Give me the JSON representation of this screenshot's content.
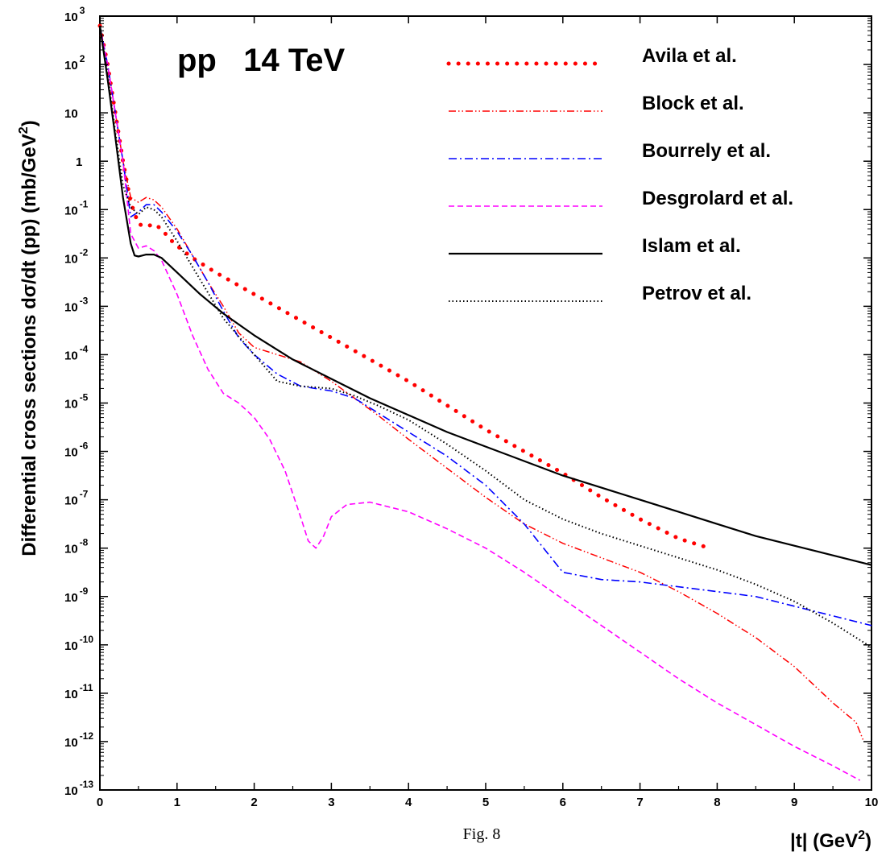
{
  "chart_data": {
    "type": "line",
    "title": "pp   14 TeV",
    "xlabel": "|t| (GeV",
    "xlabel_sup": "2",
    "xlabel_end": ")",
    "ylabel": "Differential cross sections d",
    "ylabel_sigma": "σ",
    "ylabel_mid": "/dt (pp) (mb/GeV",
    "ylabel_sup": "2",
    "ylabel_end": ")",
    "caption": "Fig. 8",
    "xlim": [
      0,
      10
    ],
    "ylim_exp": [
      -13,
      3
    ],
    "yscale": "log",
    "grid": false,
    "legend_position": "top-right",
    "x_ticks": [
      "0",
      "1",
      "2",
      "3",
      "4",
      "5",
      "6",
      "7",
      "8",
      "9",
      "10"
    ],
    "y_ticks": [
      {
        "base": "10",
        "exp": "-13",
        "value": -13
      },
      {
        "base": "10",
        "exp": "-12",
        "value": -12
      },
      {
        "base": "10",
        "exp": "-11",
        "value": -11
      },
      {
        "base": "10",
        "exp": "-10",
        "value": -10
      },
      {
        "base": "10",
        "exp": "-9",
        "value": -9
      },
      {
        "base": "10",
        "exp": "-8",
        "value": -8
      },
      {
        "base": "10",
        "exp": "-7",
        "value": -7
      },
      {
        "base": "10",
        "exp": "-6",
        "value": -6
      },
      {
        "base": "10",
        "exp": "-5",
        "value": -5
      },
      {
        "base": "10",
        "exp": "-4",
        "value": -4
      },
      {
        "base": "10",
        "exp": "-3",
        "value": -3
      },
      {
        "base": "10",
        "exp": "-2",
        "value": -2
      },
      {
        "base": "10",
        "exp": "-1",
        "value": -1
      },
      {
        "base": "1",
        "exp": "",
        "value": 0
      },
      {
        "base": "10",
        "exp": "",
        "value": 1
      },
      {
        "base": "10",
        "exp": "2",
        "value": 2
      },
      {
        "base": "10",
        "exp": "3",
        "value": 3
      }
    ],
    "series": [
      {
        "name": "Avila et al.",
        "color": "#ff0000",
        "style": "dotted-large",
        "x": [
          0,
          0.1,
          0.2,
          0.3,
          0.4,
          0.5,
          0.6,
          0.7,
          0.8,
          0.9,
          1.0,
          1.2,
          1.5,
          2.0,
          2.5,
          3.0,
          3.5,
          4.0,
          4.5,
          5.0,
          5.5,
          6.0,
          6.5,
          7.0,
          7.5,
          7.9
        ],
        "y_log10": [
          2.8,
          2.0,
          1.0,
          0.0,
          -0.85,
          -1.3,
          -1.35,
          -1.3,
          -1.4,
          -1.6,
          -1.75,
          -2.0,
          -2.3,
          -2.75,
          -3.2,
          -3.65,
          -4.1,
          -4.55,
          -5.05,
          -5.55,
          -6.0,
          -6.45,
          -6.95,
          -7.4,
          -7.8,
          -8.0
        ]
      },
      {
        "name": "Block et al.",
        "color": "#ff0000",
        "style": "dash-dot-dot",
        "x": [
          0,
          0.1,
          0.2,
          0.3,
          0.4,
          0.5,
          0.6,
          0.7,
          0.8,
          1.0,
          1.2,
          1.4,
          1.6,
          1.8,
          2.0,
          2.3,
          2.6,
          2.8,
          3.0,
          3.3,
          3.6,
          4.0,
          4.5,
          5.0,
          5.5,
          6.0,
          6.5,
          7.0,
          7.5,
          8.0,
          8.5,
          9.0,
          9.5,
          9.8,
          9.9
        ],
        "y_log10": [
          2.8,
          2.0,
          1.0,
          0.0,
          -0.75,
          -0.85,
          -0.75,
          -0.8,
          -0.95,
          -1.4,
          -1.95,
          -2.5,
          -3.0,
          -3.55,
          -3.85,
          -4.0,
          -4.15,
          -4.35,
          -4.55,
          -4.9,
          -5.25,
          -5.75,
          -6.35,
          -6.95,
          -7.5,
          -7.9,
          -8.2,
          -8.5,
          -8.9,
          -9.35,
          -9.85,
          -10.45,
          -11.2,
          -11.6,
          -12.0
        ]
      },
      {
        "name": "Bourrely et al.",
        "color": "#0000ff",
        "style": "dash-dot",
        "x": [
          0,
          0.1,
          0.2,
          0.3,
          0.4,
          0.5,
          0.6,
          0.7,
          0.8,
          1.0,
          1.2,
          1.4,
          1.6,
          1.8,
          2.0,
          2.3,
          2.6,
          3.0,
          3.3,
          3.6,
          4.0,
          4.5,
          5.0,
          5.5,
          6.0,
          6.5,
          7.0,
          7.5,
          8.0,
          8.5,
          9.0,
          9.5,
          10.0
        ],
        "y_log10": [
          2.8,
          2.0,
          1.0,
          0.0,
          -1.15,
          -1.05,
          -0.9,
          -0.9,
          -1.05,
          -1.45,
          -1.95,
          -2.5,
          -3.1,
          -3.65,
          -4.0,
          -4.4,
          -4.65,
          -4.75,
          -4.9,
          -5.2,
          -5.6,
          -6.1,
          -6.7,
          -7.5,
          -8.5,
          -8.65,
          -8.7,
          -8.8,
          -8.9,
          -9.0,
          -9.2,
          -9.4,
          -9.6
        ]
      },
      {
        "name": "Desgrolard et al.",
        "color": "#ff00ff",
        "style": "dashed",
        "x": [
          0,
          0.1,
          0.2,
          0.3,
          0.4,
          0.5,
          0.6,
          0.7,
          0.8,
          1.0,
          1.2,
          1.4,
          1.6,
          1.8,
          2.0,
          2.2,
          2.4,
          2.6,
          2.7,
          2.8,
          2.9,
          3.0,
          3.2,
          3.5,
          4.0,
          4.5,
          5.0,
          5.5,
          6.0,
          6.5,
          7.0,
          7.5,
          8.0,
          8.5,
          9.0,
          9.5,
          9.85
        ],
        "y_log10": [
          2.8,
          2.0,
          1.0,
          0.0,
          -1.5,
          -1.8,
          -1.75,
          -1.85,
          -2.05,
          -2.75,
          -3.6,
          -4.3,
          -4.8,
          -5.0,
          -5.3,
          -5.75,
          -6.4,
          -7.35,
          -7.85,
          -8.0,
          -7.75,
          -7.35,
          -7.1,
          -7.05,
          -7.25,
          -7.6,
          -8.0,
          -8.5,
          -9.05,
          -9.6,
          -10.15,
          -10.7,
          -11.2,
          -11.65,
          -12.1,
          -12.5,
          -12.8
        ]
      },
      {
        "name": "Islam et al.",
        "color": "#000000",
        "style": "solid",
        "x": [
          0,
          0.1,
          0.2,
          0.3,
          0.4,
          0.45,
          0.5,
          0.55,
          0.6,
          0.7,
          0.8,
          1.0,
          1.3,
          1.6,
          2.0,
          2.5,
          3.0,
          3.5,
          4.0,
          4.5,
          5.0,
          5.5,
          6.0,
          6.5,
          7.0,
          7.5,
          8.0,
          8.5,
          9.0,
          9.5,
          10.0
        ],
        "y_log10": [
          2.8,
          1.7,
          0.5,
          -0.75,
          -1.7,
          -1.95,
          -1.97,
          -1.95,
          -1.93,
          -1.93,
          -2.0,
          -2.3,
          -2.75,
          -3.15,
          -3.6,
          -4.1,
          -4.5,
          -4.9,
          -5.25,
          -5.6,
          -5.9,
          -6.2,
          -6.5,
          -6.75,
          -7.0,
          -7.25,
          -7.5,
          -7.75,
          -7.95,
          -8.15,
          -8.35
        ]
      },
      {
        "name": "Petrov et al.",
        "color": "#000000",
        "style": "dotted-fine",
        "x": [
          0,
          0.1,
          0.2,
          0.3,
          0.4,
          0.5,
          0.6,
          0.7,
          0.8,
          1.0,
          1.3,
          1.6,
          2.0,
          2.3,
          2.6,
          3.0,
          3.3,
          3.6,
          4.0,
          4.5,
          5.0,
          5.5,
          6.0,
          6.5,
          7.0,
          7.5,
          8.0,
          8.5,
          9.0,
          9.5,
          10.0
        ],
        "y_log10": [
          2.8,
          1.8,
          0.6,
          -0.5,
          -0.95,
          -1.1,
          -0.95,
          -1.0,
          -1.15,
          -1.65,
          -2.45,
          -3.25,
          -4.0,
          -4.55,
          -4.65,
          -4.7,
          -4.85,
          -5.05,
          -5.35,
          -5.85,
          -6.4,
          -7.0,
          -7.4,
          -7.7,
          -7.95,
          -8.2,
          -8.45,
          -8.75,
          -9.1,
          -9.55,
          -10.05
        ]
      }
    ]
  }
}
